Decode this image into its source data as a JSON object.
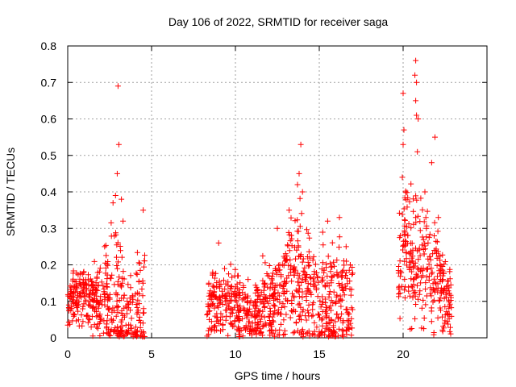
{
  "chart_data": {
    "type": "scatter",
    "title": "Day 106 of 2022, SRMTID for receiver saga",
    "xlabel": "GPS time / hours",
    "ylabel": "SRMTID / TECUs",
    "xlim": [
      0,
      25
    ],
    "ylim": [
      0,
      0.8
    ],
    "xticks": [
      0,
      5,
      10,
      15,
      20
    ],
    "yticks": [
      0,
      0.1,
      0.2,
      0.3,
      0.4,
      0.5,
      0.6,
      0.7,
      0.8
    ],
    "xtick_labels": [
      "0",
      "5",
      "10",
      "15",
      "20"
    ],
    "ytick_labels": [
      "0",
      "0.1",
      "0.2",
      "0.3",
      "0.4",
      "0.5",
      "0.6",
      "0.7",
      "0.8"
    ],
    "grid": true,
    "marker": "+",
    "color": "#ff0000",
    "series": [
      {
        "name": "SRMTID",
        "segments": [
          {
            "x_start": 0.0,
            "x_end": 4.6,
            "profile": [
              [
                0.0,
                0.1
              ],
              [
                1.0,
                0.12
              ],
              [
                2.0,
                0.1
              ],
              [
                3.0,
                0.12
              ],
              [
                3.5,
                0.05
              ],
              [
                4.0,
                0.06
              ],
              [
                4.6,
                0.1
              ]
            ],
            "spread": [
              [
                0.0,
                0.05
              ],
              [
                2.0,
                0.07
              ],
              [
                3.0,
                0.18
              ],
              [
                3.5,
                0.08
              ],
              [
                4.6,
                0.1
              ]
            ],
            "peaks": [
              [
                3.0,
                0.69
              ],
              [
                3.05,
                0.53
              ],
              [
                2.95,
                0.45
              ],
              [
                2.7,
                0.37
              ],
              [
                2.85,
                0.39
              ],
              [
                3.2,
                0.38
              ],
              [
                4.5,
                0.35
              ],
              [
                3.3,
                0.32
              ],
              [
                2.2,
                0.25
              ]
            ]
          },
          {
            "x_start": 8.3,
            "x_end": 17.0,
            "profile": [
              [
                8.3,
                0.09
              ],
              [
                9.5,
                0.1
              ],
              [
                10.5,
                0.08
              ],
              [
                11.2,
                0.06
              ],
              [
                12.5,
                0.12
              ],
              [
                13.5,
                0.17
              ],
              [
                14.2,
                0.14
              ],
              [
                15.0,
                0.1
              ],
              [
                16.0,
                0.08
              ],
              [
                17.0,
                0.12
              ]
            ],
            "spread": [
              [
                8.3,
                0.06
              ],
              [
                10.0,
                0.07
              ],
              [
                11.0,
                0.06
              ],
              [
                12.5,
                0.1
              ],
              [
                13.8,
                0.14
              ],
              [
                15.0,
                0.11
              ],
              [
                16.5,
                0.1
              ],
              [
                17.0,
                0.08
              ]
            ],
            "peaks": [
              [
                13.9,
                0.53
              ],
              [
                13.8,
                0.45
              ],
              [
                13.7,
                0.42
              ],
              [
                14.0,
                0.4
              ],
              [
                13.2,
                0.35
              ],
              [
                16.2,
                0.33
              ],
              [
                15.5,
                0.32
              ],
              [
                9.0,
                0.26
              ],
              [
                16.6,
                0.25
              ],
              [
                12.5,
                0.3
              ]
            ]
          },
          {
            "x_start": 19.7,
            "x_end": 22.9,
            "profile": [
              [
                19.7,
                0.18
              ],
              [
                20.2,
                0.25
              ],
              [
                20.6,
                0.2
              ],
              [
                21.0,
                0.28
              ],
              [
                21.5,
                0.2
              ],
              [
                22.0,
                0.18
              ],
              [
                22.5,
                0.12
              ],
              [
                22.9,
                0.1
              ]
            ],
            "spread": [
              [
                19.7,
                0.1
              ],
              [
                20.2,
                0.12
              ],
              [
                21.0,
                0.15
              ],
              [
                21.5,
                0.12
              ],
              [
                22.9,
                0.07
              ]
            ],
            "peaks": [
              [
                20.75,
                0.76
              ],
              [
                20.7,
                0.72
              ],
              [
                20.8,
                0.7
              ],
              [
                20.0,
                0.67
              ],
              [
                20.75,
                0.65
              ],
              [
                20.8,
                0.61
              ],
              [
                20.9,
                0.6
              ],
              [
                20.05,
                0.57
              ],
              [
                21.9,
                0.55
              ],
              [
                20.0,
                0.53
              ],
              [
                20.85,
                0.51
              ],
              [
                21.7,
                0.48
              ],
              [
                19.95,
                0.44
              ],
              [
                21.3,
                0.4
              ],
              [
                22.1,
                0.33
              ]
            ]
          }
        ]
      }
    ]
  }
}
